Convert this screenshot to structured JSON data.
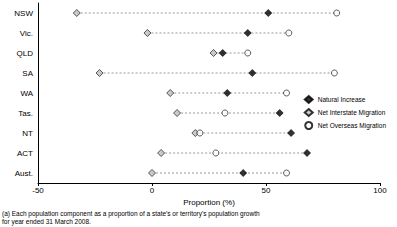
{
  "chart_data": {
    "type": "scatter",
    "orientation": "horizontal",
    "x_label": "Proportion (%)",
    "annotation": "(a) Each population component as a proportion of a state's or territory's population growth\nfor year ended 31 March 2008.",
    "categories": [
      "NSW",
      "Vic.",
      "QLD",
      "SA",
      "WA",
      "Tas.",
      "NT",
      "ACT",
      "Aust."
    ],
    "series": [
      {
        "name": "Natural Increase",
        "color": "#000000",
        "marker": "diamond",
        "values": [
          51,
          42,
          31,
          44,
          33,
          56,
          61,
          68,
          40
        ]
      },
      {
        "name": "Net Interstate Migration",
        "color": "#c0c0c0",
        "marker": "diamond",
        "values": [
          -33,
          -2,
          27,
          -23,
          8,
          11,
          19,
          4,
          0
        ]
      },
      {
        "name": "Net Overseas Migration",
        "color": "#ffffff",
        "marker": "circle",
        "values": [
          81,
          60,
          42,
          80,
          59,
          32,
          21,
          28,
          59
        ]
      }
    ],
    "xlim": [
      -50,
      100
    ],
    "xticks": [
      -50,
      0,
      50,
      100
    ],
    "grid": false,
    "legend": "right"
  }
}
